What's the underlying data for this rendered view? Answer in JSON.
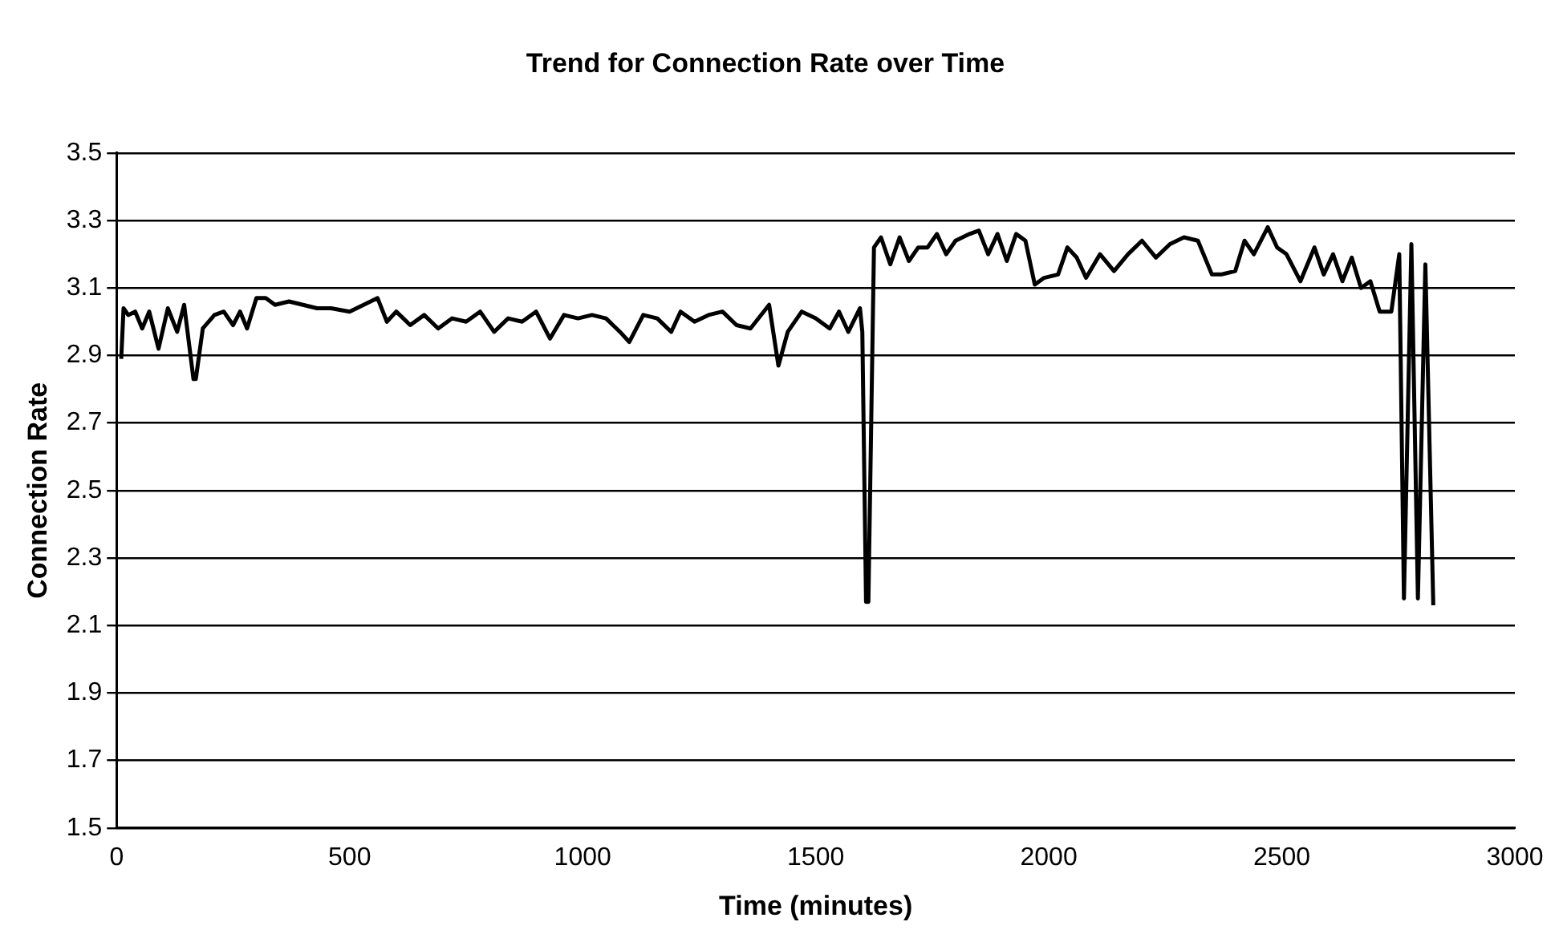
{
  "chart_data": {
    "type": "line",
    "title": "Trend for Connection Rate over Time",
    "xlabel": "Time (minutes)",
    "ylabel": "Connection Rate",
    "xlim": [
      0,
      3000
    ],
    "xticks": [
      0,
      500,
      1000,
      1500,
      2000,
      2500,
      3000
    ],
    "ylim": [
      1.5,
      3.5
    ],
    "yticks": [
      1.5,
      1.7,
      1.9,
      2.1,
      2.3,
      2.5,
      2.7,
      2.9,
      3.1,
      3.3,
      3.5
    ],
    "grid": "y",
    "legend": false,
    "marker": "none",
    "line_style": "solid",
    "series": [
      {
        "color": "#000000",
        "x": [
          10,
          15,
          25,
          40,
          55,
          70,
          90,
          110,
          130,
          145,
          165,
          170,
          185,
          210,
          230,
          250,
          265,
          280,
          300,
          320,
          340,
          370,
          400,
          430,
          460,
          500,
          530,
          560,
          580,
          600,
          630,
          660,
          690,
          720,
          750,
          780,
          810,
          840,
          870,
          900,
          930,
          960,
          990,
          1020,
          1050,
          1080,
          1100,
          1130,
          1160,
          1190,
          1210,
          1240,
          1270,
          1300,
          1330,
          1360,
          1400,
          1420,
          1440,
          1470,
          1500,
          1530,
          1550,
          1570,
          1595,
          1600,
          1608,
          1613,
          1625,
          1640,
          1660,
          1680,
          1700,
          1720,
          1740,
          1760,
          1780,
          1800,
          1830,
          1850,
          1870,
          1890,
          1910,
          1930,
          1950,
          1970,
          1990,
          2020,
          2040,
          2060,
          2080,
          2110,
          2140,
          2170,
          2200,
          2230,
          2260,
          2290,
          2320,
          2350,
          2370,
          2400,
          2420,
          2440,
          2470,
          2490,
          2510,
          2540,
          2570,
          2590,
          2610,
          2630,
          2650,
          2670,
          2690,
          2710,
          2735,
          2752,
          2762,
          2778,
          2792,
          2808,
          2825
        ],
        "values": [
          2.89,
          3.04,
          3.02,
          3.03,
          2.98,
          3.03,
          2.92,
          3.04,
          2.97,
          3.05,
          2.83,
          2.83,
          2.98,
          3.02,
          3.03,
          2.99,
          3.03,
          2.98,
          3.07,
          3.07,
          3.05,
          3.06,
          3.05,
          3.04,
          3.04,
          3.03,
          3.05,
          3.07,
          3.0,
          3.03,
          2.99,
          3.02,
          2.98,
          3.01,
          3.0,
          3.03,
          2.97,
          3.01,
          3.0,
          3.03,
          2.95,
          3.02,
          3.01,
          3.02,
          3.01,
          2.97,
          2.94,
          3.02,
          3.01,
          2.97,
          3.03,
          3.0,
          3.02,
          3.03,
          2.99,
          2.98,
          3.05,
          2.87,
          2.97,
          3.03,
          3.01,
          2.98,
          3.03,
          2.97,
          3.04,
          2.97,
          2.17,
          2.17,
          3.22,
          3.25,
          3.17,
          3.25,
          3.18,
          3.22,
          3.22,
          3.26,
          3.2,
          3.24,
          3.26,
          3.27,
          3.2,
          3.26,
          3.18,
          3.26,
          3.24,
          3.11,
          3.13,
          3.14,
          3.22,
          3.19,
          3.13,
          3.2,
          3.15,
          3.2,
          3.24,
          3.19,
          3.23,
          3.25,
          3.24,
          3.14,
          3.14,
          3.15,
          3.24,
          3.2,
          3.28,
          3.22,
          3.2,
          3.12,
          3.22,
          3.14,
          3.2,
          3.12,
          3.19,
          3.1,
          3.12,
          3.03,
          3.03,
          3.2,
          2.18,
          3.23,
          2.18,
          3.17,
          2.16
        ]
      }
    ]
  }
}
